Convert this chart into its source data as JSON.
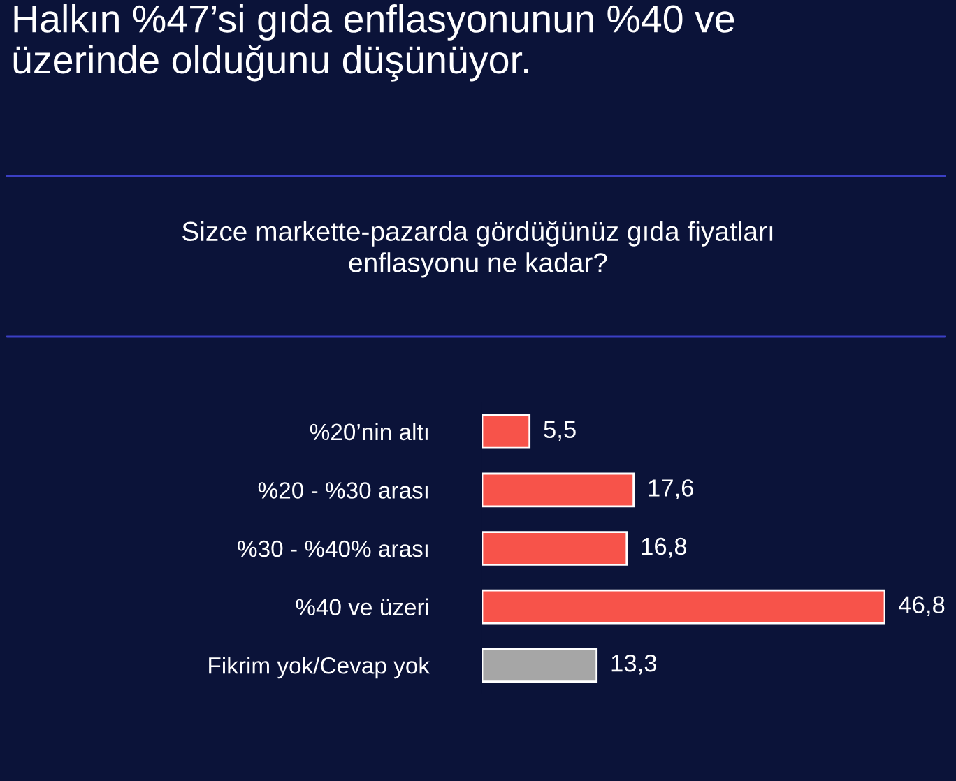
{
  "chart_data": {
    "type": "bar",
    "orientation": "horizontal",
    "title": "Halkın %47’si gıda enflasyonunun %40 ve\nüzerinde olduğunu düşünüyor.",
    "subtitle": "Sizce markette-pazarda gördüğünüz gıda fiyatları\nenflasyonu ne kadar?",
    "categories": [
      "%20’nin altı",
      "%20 - %30 arası",
      "%30 - %40% arası",
      "%40 ve üzeri",
      "Fikrim yok/Cevap yok"
    ],
    "values": [
      5.5,
      17.6,
      16.8,
      46.8,
      13.3
    ],
    "colors": [
      "#f7534a",
      "#f7534a",
      "#f7534a",
      "#f7534a",
      "#a6a6a6"
    ],
    "value_labels": [
      "5,5",
      "17,6",
      "16,8",
      "46,8",
      "13,3"
    ],
    "grid": false,
    "legend": false
  }
}
